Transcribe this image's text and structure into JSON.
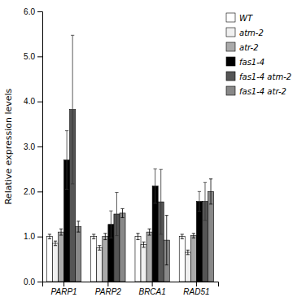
{
  "chart_data": {
    "type": "bar",
    "categories": [
      "PARP1",
      "PARP2",
      "BRCA1",
      "RAD51"
    ],
    "series": [
      {
        "name": "WT",
        "color": "#ffffff",
        "values": [
          1.0,
          1.0,
          1.0,
          1.0
        ],
        "errors": [
          0.05,
          0.05,
          0.07,
          0.05
        ]
      },
      {
        "name": "atm-2",
        "color": "#f0f0f0",
        "values": [
          0.85,
          0.75,
          0.82,
          0.65
        ],
        "errors": [
          0.05,
          0.05,
          0.06,
          0.05
        ]
      },
      {
        "name": "atr-2",
        "color": "#aaaaaa",
        "values": [
          1.1,
          1.0,
          1.1,
          1.02
        ],
        "errors": [
          0.07,
          0.07,
          0.07,
          0.05
        ]
      },
      {
        "name": "fas1-4",
        "color": "#000000",
        "values": [
          2.7,
          1.27,
          2.12,
          1.78
        ],
        "errors": [
          0.65,
          0.3,
          0.38,
          0.22
        ]
      },
      {
        "name": "fas1-4 atm-2",
        "color": "#555555",
        "values": [
          3.82,
          1.5,
          1.77,
          1.78
        ],
        "errors": [
          1.65,
          0.48,
          0.72,
          0.42
        ]
      },
      {
        "name": "fas1-4 atr-2",
        "color": "#888888",
        "values": [
          1.22,
          1.52,
          0.92,
          2.0
        ],
        "errors": [
          0.12,
          0.1,
          0.55,
          0.28
        ]
      }
    ],
    "ylabel": "Relative expression levels",
    "ylim": [
      0.0,
      6.0
    ],
    "yticks": [
      {
        "value": 0.0,
        "label": "0.0"
      },
      {
        "value": 1.0,
        "label": "1.0"
      },
      {
        "value": 2.0,
        "label": "2.0"
      },
      {
        "value": 3.0,
        "label": "3.0"
      },
      {
        "value": 4.0,
        "label": "4.0"
      },
      {
        "value": 5.0,
        "label": "5.0"
      },
      {
        "value": 6.0,
        "label": "6.0"
      }
    ],
    "grid": false,
    "legend": "right"
  }
}
